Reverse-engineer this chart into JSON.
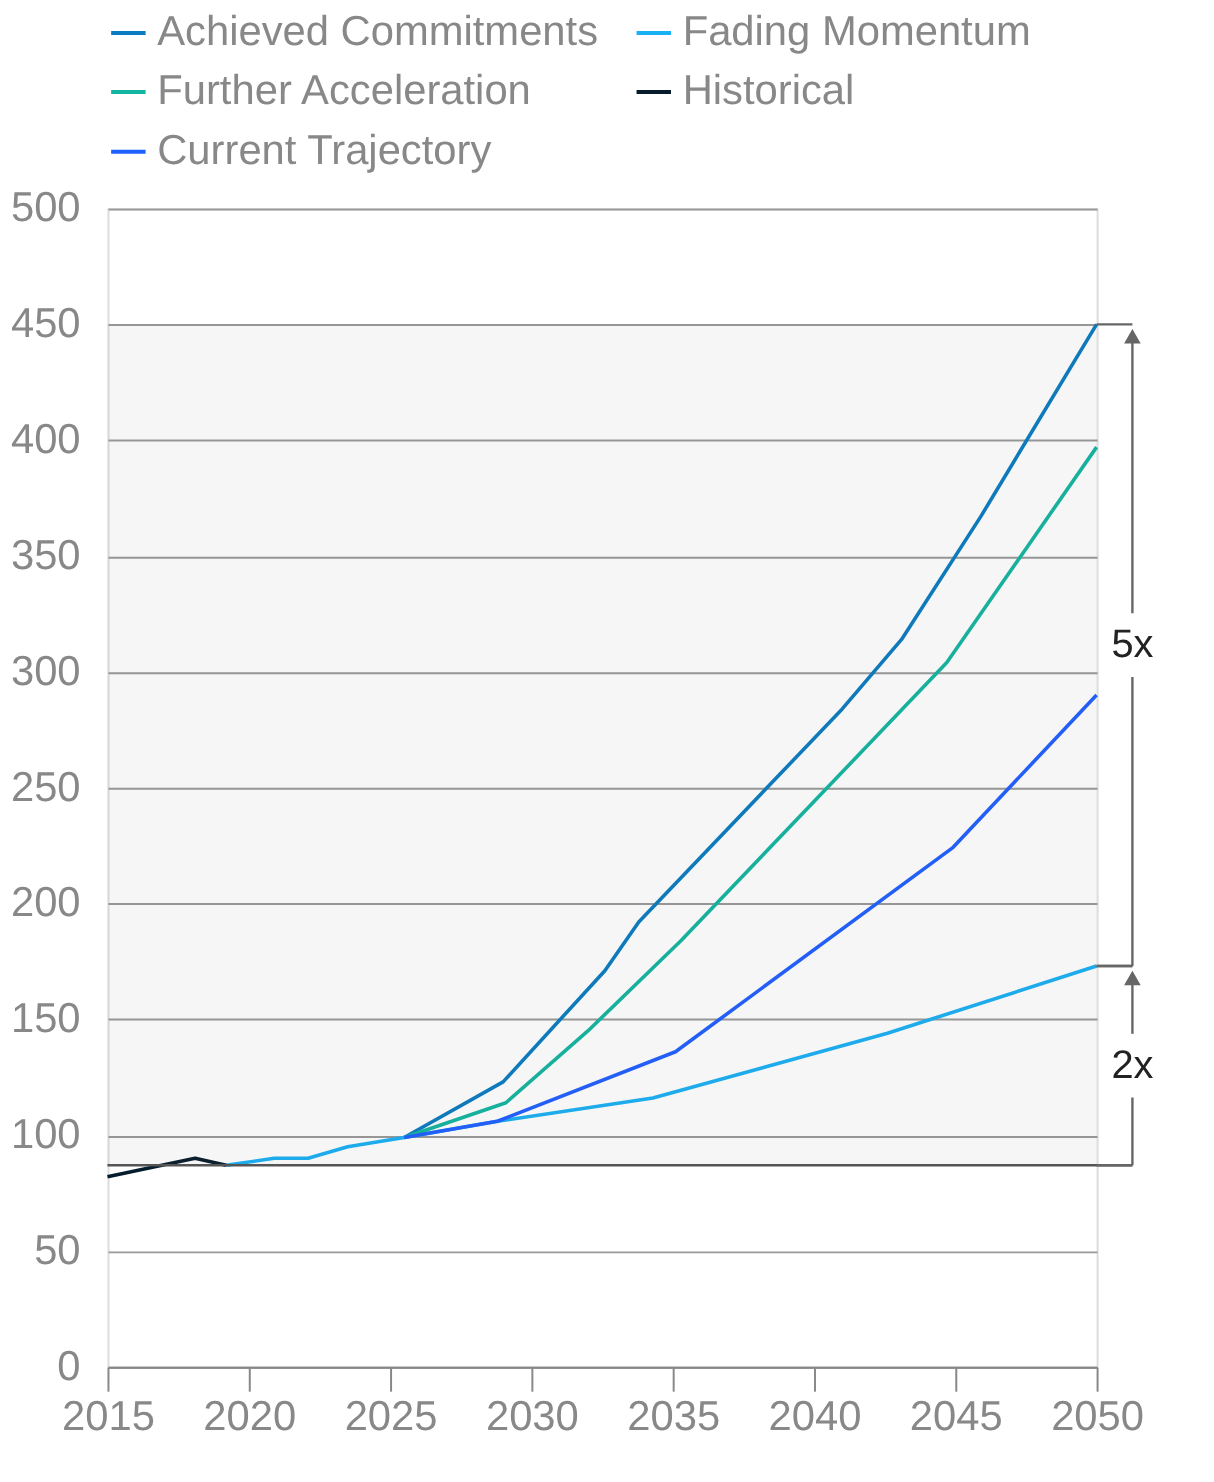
{
  "chart_data": {
    "type": "line",
    "legend": "top",
    "grid": "y",
    "xlim": [
      2015,
      2050
    ],
    "xticks": [
      2015,
      2020,
      2025,
      2030,
      2035,
      2040,
      2045,
      2050
    ],
    "ylim": [
      0,
      500
    ],
    "yticks": [
      0,
      50,
      100,
      150,
      200,
      250,
      300,
      350,
      400,
      450,
      500
    ],
    "series": [
      {
        "name": "Achieved Commitments",
        "color": "#0a7cc1",
        "x": [
          2025.5,
          2029.0,
          2032.6,
          2033.8,
          2041.0,
          2043.1,
          2045.9,
          2050
        ],
        "values": [
          99,
          123,
          171,
          192,
          284,
          314,
          367,
          450
        ]
      },
      {
        "name": "Fading Momentum",
        "color": "#1ab0f5",
        "x": [
          2019.2,
          2020.9,
          2022.1,
          2023.5,
          2025.5,
          2028.8,
          2034.3,
          2042.6,
          2050
        ],
        "values": [
          87,
          90,
          90,
          95,
          99,
          106,
          116,
          144,
          173
        ]
      },
      {
        "name": "Further Acceleration",
        "color": "#13b5a0",
        "x": [
          2025.5,
          2029.1,
          2032.0,
          2035.3,
          2044.7,
          2050
        ],
        "values": [
          99,
          114,
          145,
          184,
          304,
          397
        ]
      },
      {
        "name": "Historical",
        "color": "#051c2c",
        "x": [
          2015,
          2018.1,
          2019.2
        ],
        "values": [
          82,
          90,
          87
        ]
      },
      {
        "name": "Current Trajectory",
        "color": "#1f5fff",
        "x": [
          2025.5,
          2028.8,
          2035.1,
          2044.9,
          2050
        ],
        "values": [
          99,
          106,
          136,
          224,
          290
        ]
      }
    ],
    "ref_lines": [
      {
        "axis": "y",
        "value": 87,
        "color": "#555555"
      }
    ],
    "bands": [
      {
        "axis": "y",
        "from": 87,
        "to": 173,
        "label": "2x",
        "color": "#666666"
      },
      {
        "axis": "y",
        "from": 173,
        "to": 450,
        "label": "5x",
        "color": "#666666"
      }
    ]
  }
}
